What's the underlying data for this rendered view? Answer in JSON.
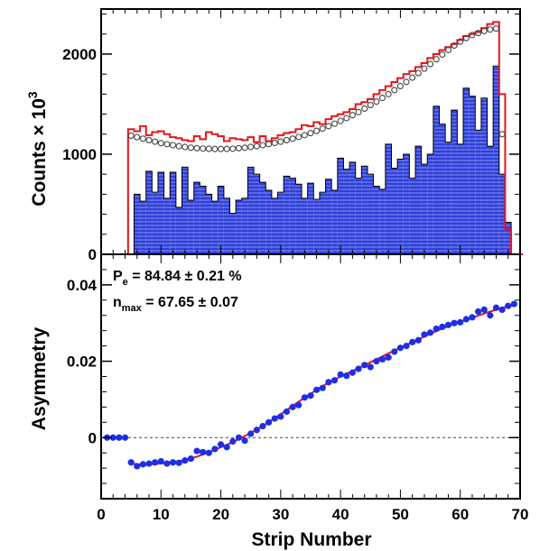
{
  "chart_data": [
    {
      "panel": "top",
      "type": "bar",
      "title": "",
      "xlabel": "",
      "ylabel": "Counts × 10",
      "ylabel_superscript": "3",
      "xlim": [
        0,
        70
      ],
      "ylim": [
        0,
        2450
      ],
      "yticks": [
        0,
        1000,
        2000
      ],
      "ytick_labels": [
        "0",
        "1000",
        "2000"
      ],
      "grid": false,
      "x": [
        1,
        2,
        3,
        4,
        5,
        6,
        7,
        8,
        9,
        10,
        11,
        12,
        13,
        14,
        15,
        16,
        17,
        18,
        19,
        20,
        21,
        22,
        23,
        24,
        25,
        26,
        27,
        28,
        29,
        30,
        31,
        32,
        33,
        34,
        35,
        36,
        37,
        38,
        39,
        40,
        41,
        42,
        43,
        44,
        45,
        46,
        47,
        48,
        49,
        50,
        51,
        52,
        53,
        54,
        55,
        56,
        57,
        58,
        59,
        60,
        61,
        62,
        63,
        64,
        65,
        66,
        67,
        68,
        69,
        70
      ],
      "series": [
        {
          "style": "filled-histogram",
          "color": "#2f3fd6",
          "values": [
            0,
            0,
            0,
            0,
            0,
            600,
            530,
            830,
            620,
            820,
            560,
            820,
            470,
            870,
            540,
            720,
            680,
            600,
            530,
            680,
            560,
            410,
            540,
            560,
            870,
            800,
            720,
            640,
            560,
            620,
            780,
            760,
            700,
            560,
            710,
            550,
            620,
            750,
            640,
            960,
            850,
            920,
            760,
            880,
            800,
            680,
            650,
            1100,
            860,
            950,
            1000,
            760,
            1080,
            900,
            1000,
            1480,
            1300,
            1120,
            1440,
            1100,
            1660,
            1580,
            1240,
            1560,
            1080,
            1880,
            800,
            320,
            0,
            0
          ]
        },
        {
          "style": "step-line",
          "color": "#e8141a",
          "values": [
            0,
            0,
            0,
            0,
            1250,
            1230,
            1280,
            1190,
            1220,
            1230,
            1200,
            1170,
            1160,
            1140,
            1130,
            1180,
            1150,
            1220,
            1200,
            1180,
            1130,
            1160,
            1150,
            1140,
            1170,
            1120,
            1180,
            1130,
            1160,
            1190,
            1210,
            1220,
            1250,
            1290,
            1280,
            1320,
            1300,
            1350,
            1380,
            1400,
            1420,
            1450,
            1500,
            1520,
            1550,
            1600,
            1640,
            1680,
            1720,
            1760,
            1800,
            1830,
            1870,
            1910,
            1960,
            2000,
            2040,
            2070,
            2100,
            2140,
            2180,
            2200,
            2220,
            2260,
            2300,
            2320,
            1600,
            250,
            0,
            0
          ]
        },
        {
          "style": "open-circle-markers",
          "color": "#444444",
          "values": [
            null,
            null,
            null,
            null,
            1185,
            1170,
            1155,
            1140,
            1125,
            1110,
            1100,
            1090,
            1080,
            1072,
            1065,
            1060,
            1056,
            1054,
            1052,
            1052,
            1053,
            1055,
            1060,
            1065,
            1072,
            1080,
            1090,
            1100,
            1112,
            1125,
            1140,
            1155,
            1172,
            1190,
            1210,
            1232,
            1255,
            1280,
            1305,
            1332,
            1360,
            1390,
            1420,
            1455,
            1490,
            1525,
            1562,
            1600,
            1640,
            1680,
            1722,
            1765,
            1810,
            1855,
            1900,
            1948,
            1995,
            2040,
            2085,
            2125,
            2160,
            2190,
            2210,
            2230,
            2245,
            2255,
            1200,
            null,
            null,
            null
          ]
        }
      ]
    },
    {
      "panel": "bottom",
      "type": "scatter",
      "title": "",
      "xlabel": "Strip Number",
      "ylabel": "Asymmetry",
      "xlim": [
        0,
        70
      ],
      "ylim": [
        -0.016,
        0.048
      ],
      "xticks": [
        0,
        10,
        20,
        30,
        40,
        50,
        60,
        70
      ],
      "xtick_labels": [
        "0",
        "10",
        "20",
        "30",
        "40",
        "50",
        "60",
        "70"
      ],
      "yticks": [
        0,
        0.02,
        0.04
      ],
      "ytick_labels": [
        "0",
        "0.02",
        "0.04"
      ],
      "grid": false,
      "reference_line": {
        "y": 0,
        "style": "dotted"
      },
      "annotations": [
        {
          "main": "P",
          "sub": "e",
          "rest": " = 84.84 ± 0.21 %"
        },
        {
          "main": "n",
          "sub": "max",
          "rest": " = 67.65 ± 0.07"
        }
      ],
      "series": [
        {
          "style": "points",
          "color": "#1f2ee6",
          "x": [
            1,
            2,
            3,
            4,
            5,
            6,
            7,
            8,
            9,
            10,
            11,
            12,
            13,
            14,
            15,
            16,
            17,
            18,
            19,
            20,
            21,
            22,
            23,
            24,
            25,
            26,
            27,
            28,
            29,
            30,
            31,
            32,
            33,
            34,
            35,
            36,
            37,
            38,
            39,
            40,
            41,
            42,
            43,
            44,
            45,
            46,
            47,
            48,
            49,
            50,
            51,
            52,
            53,
            54,
            55,
            56,
            57,
            58,
            59,
            60,
            61,
            62,
            63,
            64,
            65,
            66,
            67,
            68,
            69
          ],
          "y": [
            0,
            0,
            0,
            0,
            -0.0065,
            -0.0075,
            -0.007,
            -0.0068,
            -0.0065,
            -0.0062,
            -0.0068,
            -0.0065,
            -0.0066,
            -0.006,
            -0.0055,
            -0.0035,
            -0.0038,
            -0.004,
            -0.003,
            -0.0018,
            -0.0025,
            -0.001,
            0.0,
            -0.0008,
            0.001,
            0.002,
            0.003,
            0.004,
            0.005,
            0.0055,
            0.0068,
            0.008,
            0.0085,
            0.0105,
            0.011,
            0.0125,
            0.013,
            0.0145,
            0.015,
            0.0165,
            0.0162,
            0.017,
            0.018,
            0.019,
            0.0185,
            0.02,
            0.0205,
            0.021,
            0.0225,
            0.0235,
            0.024,
            0.025,
            0.0255,
            0.027,
            0.0275,
            0.0285,
            0.029,
            0.0295,
            0.03,
            0.0302,
            0.031,
            0.0315,
            0.033,
            0.0335,
            0.032,
            0.034,
            0.0335,
            0.0345,
            0.035
          ]
        },
        {
          "style": "line",
          "color": "#e8141a",
          "x": [
            5,
            7,
            10,
            13,
            16,
            19,
            22,
            25,
            28,
            31,
            34,
            37,
            40,
            43,
            46,
            49,
            52,
            55,
            58,
            61,
            64,
            67,
            69
          ],
          "y": [
            -0.0068,
            -0.0071,
            -0.0068,
            -0.0062,
            -0.005,
            -0.0032,
            -0.0012,
            0.0012,
            0.004,
            0.0072,
            0.0105,
            0.0135,
            0.016,
            0.0182,
            0.0205,
            0.0228,
            0.025,
            0.0272,
            0.0292,
            0.0308,
            0.0325,
            0.034,
            0.0346
          ]
        }
      ]
    }
  ]
}
